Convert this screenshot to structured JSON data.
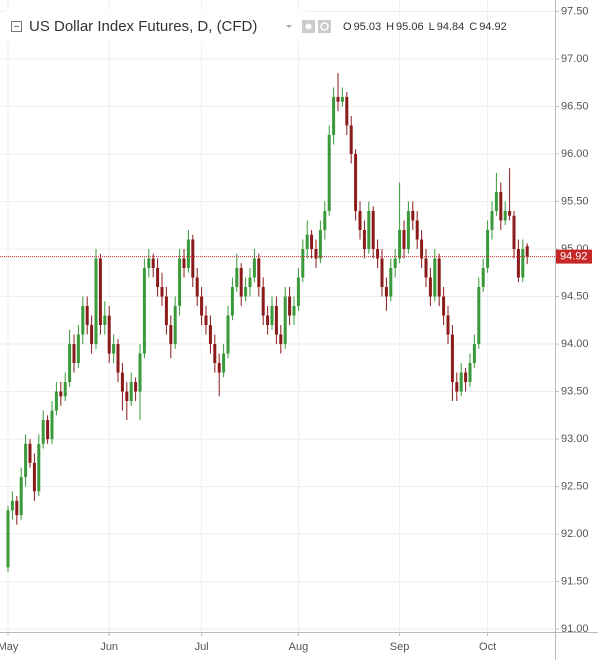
{
  "chart_data": {
    "type": "candlestick",
    "title": "US Dollar Index Futures, D, (CFD)",
    "ohlc_labels": [
      "O",
      "H",
      "L",
      "C"
    ],
    "up_color": "#3a9a3a",
    "down_color": "#8b1a1a",
    "price_line_color": "#c62828",
    "ylim": [
      90.97,
      97.62
    ],
    "yticks": [
      {
        "value": 91,
        "label": "91.00"
      },
      {
        "value": 91.5,
        "label": "91.50"
      },
      {
        "value": 92,
        "label": "92.00"
      },
      {
        "value": 92.5,
        "label": "92.50"
      },
      {
        "value": 93,
        "label": "93.00"
      },
      {
        "value": 93.5,
        "label": "93.50"
      },
      {
        "value": 94,
        "label": "94.00"
      },
      {
        "value": 94.5,
        "label": "94.50"
      },
      {
        "value": 95,
        "label": "95.00"
      },
      {
        "value": 95.5,
        "label": "95.50"
      },
      {
        "value": 96,
        "label": "96.00"
      },
      {
        "value": 96.5,
        "label": "96.50"
      },
      {
        "value": 97,
        "label": "97.00"
      },
      {
        "value": 97.5,
        "label": "97.50"
      }
    ],
    "grid": true,
    "categories": [
      "May",
      null,
      null,
      null,
      null,
      null,
      null,
      null,
      null,
      null,
      null,
      null,
      null,
      null,
      null,
      null,
      null,
      null,
      null,
      null,
      null,
      null,
      null,
      "Jun",
      null,
      null,
      null,
      null,
      null,
      null,
      null,
      null,
      null,
      null,
      null,
      null,
      null,
      null,
      null,
      null,
      null,
      null,
      null,
      null,
      "Jul",
      null,
      null,
      null,
      null,
      null,
      null,
      null,
      null,
      null,
      null,
      null,
      null,
      null,
      null,
      null,
      null,
      null,
      null,
      null,
      null,
      null,
      "Aug",
      null,
      null,
      null,
      null,
      null,
      null,
      null,
      null,
      null,
      null,
      null,
      null,
      null,
      null,
      null,
      null,
      null,
      null,
      null,
      null,
      null,
      null,
      "Sep",
      null,
      null,
      null,
      null,
      null,
      null,
      null,
      null,
      null,
      null,
      null,
      null,
      null,
      null,
      null,
      null,
      null,
      null,
      null,
      "Oct",
      null,
      null,
      null,
      null,
      null,
      null,
      null,
      null,
      null
    ],
    "ohlc": [
      [
        91.65,
        92.3,
        91.6,
        92.25
      ],
      [
        92.25,
        92.45,
        92.15,
        92.35
      ],
      [
        92.35,
        92.4,
        92.1,
        92.2
      ],
      [
        92.2,
        92.7,
        92.15,
        92.6
      ],
      [
        92.6,
        93.05,
        92.5,
        92.95
      ],
      [
        92.95,
        93.0,
        92.7,
        92.75
      ],
      [
        92.75,
        92.85,
        92.35,
        92.45
      ],
      [
        92.45,
        93.05,
        92.4,
        92.95
      ],
      [
        92.95,
        93.3,
        92.9,
        93.2
      ],
      [
        93.2,
        93.25,
        92.95,
        93.0
      ],
      [
        93.0,
        93.4,
        92.95,
        93.3
      ],
      [
        93.3,
        93.6,
        93.25,
        93.5
      ],
      [
        93.5,
        93.6,
        93.35,
        93.45
      ],
      [
        93.45,
        93.7,
        93.4,
        93.6
      ],
      [
        93.6,
        94.15,
        93.55,
        94.0
      ],
      [
        94.0,
        94.1,
        93.7,
        93.8
      ],
      [
        93.8,
        94.2,
        93.75,
        94.1
      ],
      [
        94.1,
        94.5,
        94.0,
        94.4
      ],
      [
        94.4,
        94.5,
        94.1,
        94.2
      ],
      [
        94.2,
        94.3,
        93.9,
        94.0
      ],
      [
        94.0,
        95.0,
        93.95,
        94.9
      ],
      [
        94.9,
        94.95,
        94.1,
        94.2
      ],
      [
        94.2,
        94.45,
        94.1,
        94.3
      ],
      [
        94.3,
        94.4,
        93.8,
        93.9
      ],
      [
        93.9,
        94.1,
        93.8,
        94.0
      ],
      [
        94.0,
        94.05,
        93.6,
        93.7
      ],
      [
        93.7,
        93.8,
        93.3,
        93.5
      ],
      [
        93.5,
        93.6,
        93.2,
        93.4
      ],
      [
        93.4,
        93.7,
        93.35,
        93.6
      ],
      [
        93.6,
        93.65,
        93.4,
        93.5
      ],
      [
        93.5,
        94.0,
        93.2,
        93.9
      ],
      [
        93.9,
        94.9,
        93.85,
        94.8
      ],
      [
        94.8,
        95.0,
        94.7,
        94.9
      ],
      [
        94.9,
        94.95,
        94.7,
        94.8
      ],
      [
        94.8,
        94.9,
        94.5,
        94.6
      ],
      [
        94.6,
        94.75,
        94.4,
        94.5
      ],
      [
        94.5,
        94.6,
        94.1,
        94.2
      ],
      [
        94.2,
        94.3,
        93.85,
        94.0
      ],
      [
        94.0,
        94.5,
        93.95,
        94.4
      ],
      [
        94.4,
        95.0,
        94.3,
        94.9
      ],
      [
        94.9,
        95.0,
        94.7,
        94.8
      ],
      [
        94.8,
        95.2,
        94.75,
        95.1
      ],
      [
        95.1,
        95.15,
        94.6,
        94.7
      ],
      [
        94.7,
        94.8,
        94.4,
        94.5
      ],
      [
        94.5,
        94.6,
        94.2,
        94.3
      ],
      [
        94.3,
        94.4,
        94.1,
        94.2
      ],
      [
        94.2,
        94.3,
        93.9,
        94.0
      ],
      [
        94.0,
        94.1,
        93.7,
        93.8
      ],
      [
        93.8,
        93.9,
        93.45,
        93.7
      ],
      [
        93.7,
        94.0,
        93.65,
        93.9
      ],
      [
        93.9,
        94.4,
        93.85,
        94.3
      ],
      [
        94.3,
        94.7,
        94.25,
        94.6
      ],
      [
        94.6,
        94.95,
        94.55,
        94.8
      ],
      [
        94.8,
        94.85,
        94.4,
        94.5
      ],
      [
        94.5,
        94.7,
        94.45,
        94.6
      ],
      [
        94.6,
        94.8,
        94.5,
        94.7
      ],
      [
        94.7,
        95.0,
        94.65,
        94.9
      ],
      [
        94.9,
        94.95,
        94.5,
        94.6
      ],
      [
        94.6,
        94.7,
        94.2,
        94.3
      ],
      [
        94.3,
        94.4,
        94.1,
        94.2
      ],
      [
        94.2,
        94.5,
        94.15,
        94.4
      ],
      [
        94.4,
        94.5,
        94.0,
        94.1
      ],
      [
        94.1,
        94.2,
        93.9,
        94.0
      ],
      [
        94.0,
        94.6,
        93.95,
        94.5
      ],
      [
        94.5,
        94.6,
        94.2,
        94.3
      ],
      [
        94.3,
        94.5,
        94.2,
        94.4
      ],
      [
        94.4,
        94.8,
        94.35,
        94.7
      ],
      [
        94.7,
        95.1,
        94.65,
        95.0
      ],
      [
        95.0,
        95.3,
        94.9,
        95.15
      ],
      [
        95.15,
        95.2,
        94.9,
        95.0
      ],
      [
        95.0,
        95.1,
        94.8,
        94.9
      ],
      [
        94.9,
        95.3,
        94.85,
        95.2
      ],
      [
        95.2,
        95.5,
        95.1,
        95.4
      ],
      [
        95.4,
        96.3,
        95.35,
        96.2
      ],
      [
        96.2,
        96.7,
        96.1,
        96.6
      ],
      [
        96.6,
        96.85,
        96.45,
        96.55
      ],
      [
        96.55,
        96.7,
        96.5,
        96.6
      ],
      [
        96.6,
        96.65,
        96.2,
        96.3
      ],
      [
        96.3,
        96.4,
        95.9,
        96.0
      ],
      [
        96.0,
        96.05,
        95.3,
        95.4
      ],
      [
        95.4,
        95.5,
        95.1,
        95.2
      ],
      [
        95.2,
        95.3,
        94.9,
        95.0
      ],
      [
        95.0,
        95.5,
        94.95,
        95.4
      ],
      [
        95.4,
        95.45,
        94.9,
        95.0
      ],
      [
        95.0,
        95.1,
        94.8,
        94.9
      ],
      [
        94.9,
        95.0,
        94.5,
        94.6
      ],
      [
        94.6,
        94.7,
        94.35,
        94.5
      ],
      [
        94.5,
        94.9,
        94.45,
        94.8
      ],
      [
        94.8,
        95.0,
        94.7,
        94.9
      ],
      [
        94.9,
        95.7,
        94.85,
        95.2
      ],
      [
        95.2,
        95.3,
        94.9,
        95.0
      ],
      [
        95.0,
        95.5,
        94.95,
        95.4
      ],
      [
        95.4,
        95.5,
        95.2,
        95.3
      ],
      [
        95.3,
        95.4,
        95.0,
        95.1
      ],
      [
        95.1,
        95.2,
        94.8,
        94.9
      ],
      [
        94.9,
        95.0,
        94.6,
        94.7
      ],
      [
        94.7,
        94.8,
        94.4,
        94.5
      ],
      [
        94.5,
        95.0,
        94.45,
        94.9
      ],
      [
        94.9,
        94.95,
        94.4,
        94.5
      ],
      [
        94.5,
        94.6,
        94.2,
        94.3
      ],
      [
        94.3,
        94.4,
        94.0,
        94.1
      ],
      [
        94.1,
        94.2,
        93.4,
        93.6
      ],
      [
        93.6,
        93.7,
        93.4,
        93.5
      ],
      [
        93.5,
        93.8,
        93.45,
        93.7
      ],
      [
        93.7,
        93.75,
        93.5,
        93.6
      ],
      [
        93.6,
        93.9,
        93.55,
        93.8
      ],
      [
        93.8,
        94.1,
        93.75,
        94.0
      ],
      [
        94.0,
        94.7,
        93.95,
        94.6
      ],
      [
        94.6,
        94.9,
        94.55,
        94.8
      ],
      [
        94.8,
        95.3,
        94.75,
        95.2
      ],
      [
        95.2,
        95.5,
        95.1,
        95.4
      ],
      [
        95.4,
        95.8,
        95.35,
        95.6
      ],
      [
        95.6,
        95.7,
        95.2,
        95.3
      ],
      [
        95.3,
        95.5,
        95.25,
        95.4
      ],
      [
        95.4,
        95.85,
        95.3,
        95.35
      ],
      [
        95.35,
        95.4,
        94.9,
        95.0
      ],
      [
        95.0,
        95.1,
        94.65,
        94.7
      ],
      [
        94.7,
        95.1,
        94.65,
        95.0
      ],
      [
        95.03,
        95.06,
        94.84,
        94.92
      ]
    ]
  }
}
